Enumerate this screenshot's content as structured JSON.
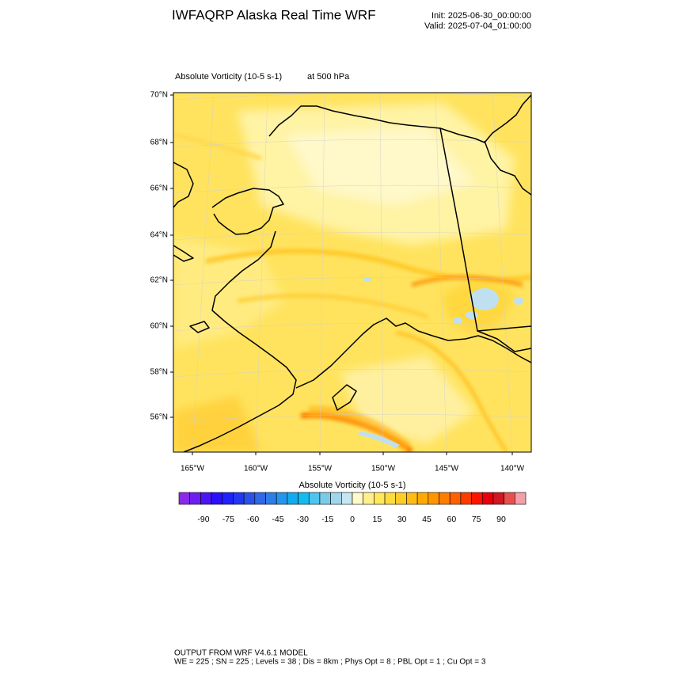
{
  "header": {
    "title": "IWFAQRP Alaska Real Time WRF",
    "init": "Init: 2025-06-30_00:00:00",
    "valid": "Valid: 2025-07-04_01:00:00"
  },
  "map": {
    "field_label": "Absolute Vorticity   (10-5 s-1)",
    "level_label": "at   500 hPa",
    "lat_labels": [
      "70°N",
      "68°N",
      "66°N",
      "64°N",
      "62°N",
      "60°N",
      "58°N",
      "56°N"
    ],
    "lon_labels": [
      "165°W",
      "160°W",
      "155°W",
      "150°W",
      "145°W",
      "140°W"
    ]
  },
  "colorbar": {
    "title": "Absolute Vorticity  (10-5 s-1)",
    "colors": [
      "#8c28e8",
      "#6e1ef0",
      "#4b14f5",
      "#2b0fff",
      "#1e22ff",
      "#2238f0",
      "#2a52e8",
      "#3068e6",
      "#2e7ee8",
      "#2496ec",
      "#14aaf0",
      "#10bcf2",
      "#4ec4ee",
      "#78cce8",
      "#a0d6ec",
      "#c6e6f2",
      "#fffac8",
      "#fff08c",
      "#ffe85a",
      "#ffdc3c",
      "#ffcc28",
      "#ffbc14",
      "#ffaa00",
      "#ff9600",
      "#ff7e00",
      "#ff6000",
      "#ff3c00",
      "#ff1400",
      "#e8000a",
      "#d01820",
      "#e85050",
      "#f4a0a8"
    ],
    "ticks": [
      -90,
      -75,
      -60,
      -45,
      -30,
      -15,
      0,
      15,
      30,
      45,
      60,
      75,
      90
    ]
  },
  "footer": {
    "line1": "OUTPUT FROM WRF V4.6.1 MODEL",
    "line2": "WE = 225 ; SN = 225 ; Levels = 38 ; Dis = 8km ; Phys Opt = 8 ; PBL Opt = 1 ; Cu Opt = 3"
  }
}
